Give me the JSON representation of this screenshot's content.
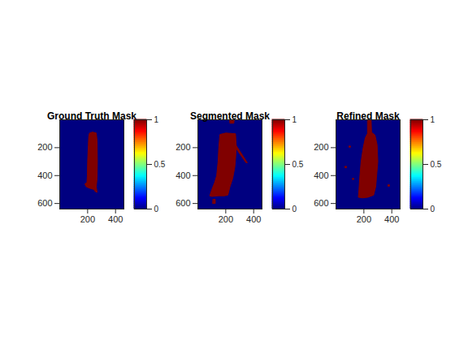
{
  "chart_data": [
    {
      "type": "image",
      "title": "Ground Truth Mask",
      "color": "jet",
      "xlim": [
        0,
        460
      ],
      "ylim": [
        0,
        640
      ],
      "xticks": [
        200,
        400
      ],
      "yticks": [
        200,
        400,
        600
      ],
      "colorbar": {
        "range": [
          0,
          1
        ],
        "ticks": [
          0,
          0.5,
          1
        ]
      },
      "cells": {
        "background": 0,
        "regions": [
          {
            "value": 1,
            "polygon": [
              [
                215,
                95
              ],
              [
                235,
                88
              ],
              [
                262,
                95
              ],
              [
                268,
                150
              ],
              [
                270,
                300
              ],
              [
                268,
                420
              ],
              [
                262,
                480
              ],
              [
                268,
                520
              ],
              [
                255,
                515
              ],
              [
                245,
                500
              ],
              [
                230,
                495
              ],
              [
                212,
                490
              ],
              [
                190,
                480
              ],
              [
                180,
                460
              ],
              [
                195,
                450
              ],
              [
                198,
                400
              ],
              [
                200,
                300
              ],
              [
                205,
                180
              ],
              [
                208,
                120
              ]
            ]
          }
        ]
      }
    },
    {
      "type": "image",
      "title": "Segmented Mask",
      "color": "jet",
      "xlim": [
        0,
        460
      ],
      "ylim": [
        0,
        640
      ],
      "xticks": [
        200,
        400
      ],
      "yticks": [
        200,
        400,
        600
      ],
      "colorbar": {
        "range": [
          0,
          1
        ],
        "ticks": [
          0,
          0.5,
          1
        ]
      },
      "cells": {
        "background": 0,
        "regions": [
          {
            "value": 1,
            "polygon": [
              [
                160,
                105
              ],
              [
                200,
                95
              ],
              [
                270,
                100
              ],
              [
                275,
                180
              ],
              [
                272,
                260
              ],
              [
                265,
                340
              ],
              [
                250,
                420
              ],
              [
                230,
                480
              ],
              [
                215,
                540
              ],
              [
                190,
                545
              ],
              [
                150,
                545
              ],
              [
                100,
                550
              ],
              [
                85,
                545
              ],
              [
                100,
                500
              ],
              [
                120,
                450
              ],
              [
                135,
                400
              ],
              [
                145,
                300
              ],
              [
                150,
                200
              ]
            ]
          },
          {
            "value": 1,
            "polygon": [
              [
                272,
                180
              ],
              [
                350,
                300
              ],
              [
                355,
                308
              ],
              [
                345,
                308
              ],
              [
                270,
                200
              ]
            ]
          },
          {
            "value": 1,
            "polygon": [
              [
                230,
                0
              ],
              [
                260,
                0
              ],
              [
                258,
                25
              ],
              [
                232,
                25
              ]
            ]
          },
          {
            "value": 1,
            "polygon": [
              [
                110,
                570
              ],
              [
                125,
                570
              ],
              [
                125,
                600
              ],
              [
                108,
                600
              ]
            ]
          }
        ]
      }
    },
    {
      "type": "image",
      "title": "Refined Mask",
      "color": "jet",
      "xlim": [
        0,
        460
      ],
      "ylim": [
        0,
        640
      ],
      "xticks": [
        200,
        400
      ],
      "yticks": [
        200,
        400,
        600
      ],
      "colorbar": {
        "range": [
          0,
          1
        ],
        "ticks": [
          0,
          0.5,
          1
        ]
      },
      "cells": {
        "background": 0,
        "regions": [
          {
            "value": 1,
            "polygon": [
              [
                228,
                0
              ],
              [
                252,
                0
              ],
              [
                255,
                90
              ],
              [
                280,
                110
              ],
              [
                295,
                180
              ],
              [
                300,
                300
              ],
              [
                290,
                420
              ],
              [
                285,
                480
              ],
              [
                270,
                540
              ],
              [
                230,
                555
              ],
              [
                190,
                560
              ],
              [
                160,
                555
              ],
              [
                165,
                500
              ],
              [
                170,
                420
              ],
              [
                180,
                300
              ],
              [
                195,
                200
              ],
              [
                210,
                130
              ],
              [
                225,
                100
              ]
            ]
          },
          {
            "value": 1,
            "polygon": [
              [
                66,
                334
              ],
              [
                76,
                334
              ],
              [
                76,
                344
              ],
              [
                66,
                344
              ]
            ]
          },
          {
            "value": 1,
            "polygon": [
              [
                374,
                466
              ],
              [
                384,
                466
              ],
              [
                384,
                476
              ],
              [
                374,
                476
              ]
            ]
          },
          {
            "value": 1,
            "polygon": [
              [
                95,
                188
              ],
              [
                104,
                188
              ],
              [
                104,
                197
              ],
              [
                95,
                197
              ]
            ]
          },
          {
            "value": 1,
            "polygon": [
              [
                120,
                420
              ],
              [
                128,
                420
              ],
              [
                128,
                428
              ],
              [
                120,
                428
              ]
            ]
          }
        ]
      }
    }
  ]
}
